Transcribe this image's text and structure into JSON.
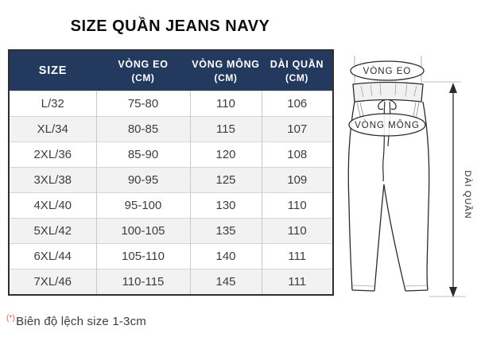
{
  "title": "SIZE QUẦN JEANS NAVY",
  "table": {
    "columns": {
      "size": "SIZE",
      "waist": "VÒNG EO",
      "hip": "VÒNG MÔNG",
      "length": "DÀI QUẦN"
    },
    "unit_label": "(CM)",
    "rows": [
      {
        "size": "L/32",
        "waist": "75-80",
        "hip": "110",
        "length": "106"
      },
      {
        "size": "XL/34",
        "waist": "80-85",
        "hip": "115",
        "length": "107"
      },
      {
        "size": "2XL/36",
        "waist": "85-90",
        "hip": "120",
        "length": "108"
      },
      {
        "size": "3XL/38",
        "waist": "90-95",
        "hip": "125",
        "length": "109"
      },
      {
        "size": "4XL/40",
        "waist": "95-100",
        "hip": "130",
        "length": "110"
      },
      {
        "size": "5XL/42",
        "waist": "100-105",
        "hip": "135",
        "length": "110"
      },
      {
        "size": "6XL/44",
        "waist": "105-110",
        "hip": "140",
        "length": "111"
      },
      {
        "size": "7XL/46",
        "waist": "110-115",
        "hip": "145",
        "length": "111"
      }
    ]
  },
  "footnote": {
    "marker": "(*)",
    "text": "Biên độ lệch size 1-3cm"
  },
  "diagram": {
    "waist_label": "VÒNG EO",
    "hip_label": "VÒNG MÔNG",
    "length_label": "DÀI QUẦN"
  },
  "colors": {
    "header_bg": "#23395d",
    "header_text": "#ffffff",
    "row_alt_bg": "#f2f2f2",
    "table_border": "#2e2e2e",
    "footnote_marker": "#e05252"
  }
}
